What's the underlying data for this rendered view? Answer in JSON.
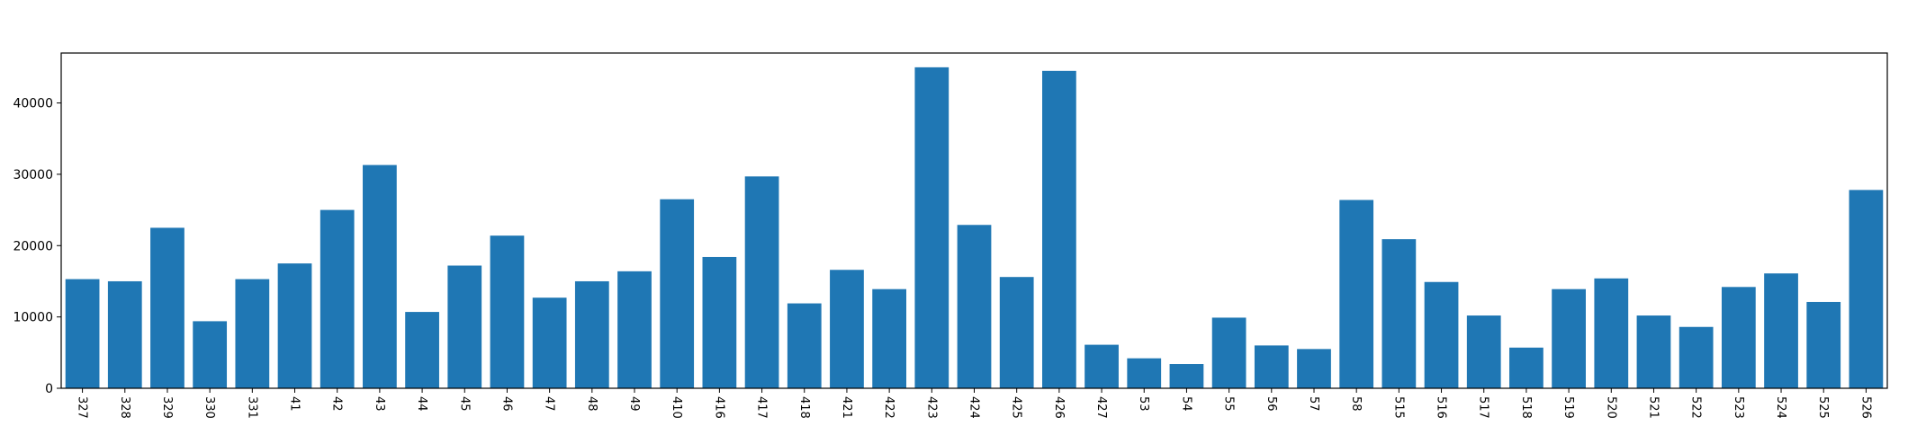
{
  "chart_data": {
    "type": "bar",
    "title": "",
    "xlabel": "",
    "ylabel": "",
    "color": "#1f77b4",
    "grid": false,
    "legend": "none",
    "ylim": [
      0,
      47000
    ],
    "yticks": [
      0,
      10000,
      20000,
      30000,
      40000
    ],
    "ytick_labels": [
      "0",
      "10000",
      "20000",
      "30000",
      "40000"
    ],
    "categories": [
      "327",
      "328",
      "329",
      "330",
      "331",
      "41",
      "42",
      "43",
      "44",
      "45",
      "46",
      "47",
      "48",
      "49",
      "410",
      "416",
      "417",
      "418",
      "421",
      "422",
      "423",
      "424",
      "425",
      "426",
      "427",
      "53",
      "54",
      "55",
      "56",
      "57",
      "58",
      "515",
      "516",
      "517",
      "518",
      "519",
      "520",
      "521",
      "522",
      "523",
      "524",
      "525",
      "526"
    ],
    "values": [
      15300,
      15000,
      22500,
      9400,
      15300,
      17500,
      25000,
      31300,
      10700,
      17200,
      21400,
      12700,
      15000,
      16400,
      26500,
      18400,
      29700,
      11900,
      16600,
      13900,
      45000,
      22900,
      15600,
      44500,
      6100,
      4200,
      3400,
      9900,
      6000,
      5500,
      26400,
      20900,
      14900,
      10200,
      5700,
      13900,
      15400,
      10200,
      8600,
      14200,
      16100,
      12100,
      27800
    ]
  }
}
